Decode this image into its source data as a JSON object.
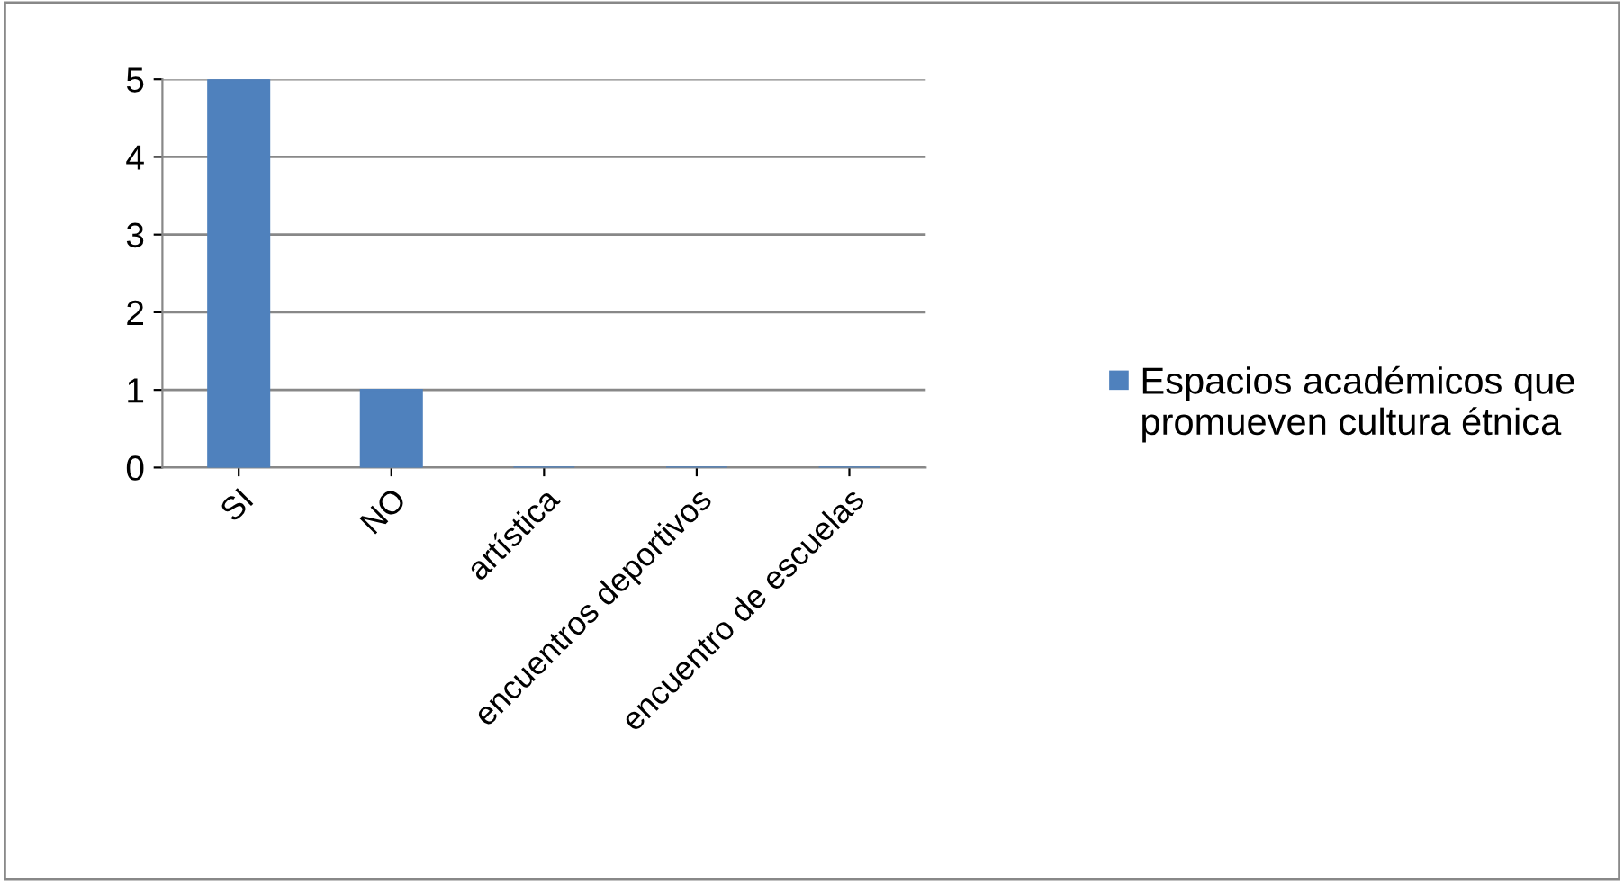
{
  "chart_data": {
    "type": "bar",
    "categories": [
      "SI",
      "NO",
      "artística",
      "encuentros deportivos",
      "encuentro de escuelas"
    ],
    "series": [
      {
        "name": "Espacios académicos que promueven cultura étnica",
        "color": "#4f81bd",
        "values": [
          5,
          1,
          0,
          0,
          0
        ]
      }
    ],
    "ylim": [
      0,
      5
    ],
    "yticks": [
      0,
      1,
      2,
      3,
      4,
      5
    ],
    "grid": "y",
    "legend": "right"
  }
}
